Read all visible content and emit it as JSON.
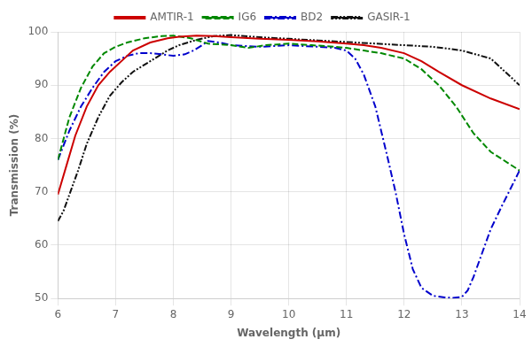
{
  "chart_data": {
    "type": "line",
    "xlabel": "Wavelength (μm)",
    "ylabel": "Transmission (%)",
    "xlim": [
      6,
      14
    ],
    "ylim": [
      50,
      100
    ],
    "xticks": [
      6,
      7,
      8,
      9,
      10,
      11,
      12,
      13,
      14
    ],
    "yticks": [
      50,
      60,
      70,
      80,
      90,
      100
    ],
    "grid": true,
    "legend": "top",
    "series": [
      {
        "name": "AMTIR-1",
        "color": "#cc0000",
        "line_style": "solid",
        "x": [
          6.0,
          6.15,
          6.3,
          6.5,
          6.7,
          6.9,
          7.1,
          7.3,
          7.6,
          7.9,
          8.1,
          8.4,
          8.7,
          9.0,
          9.5,
          10.0,
          10.5,
          11.0,
          11.3,
          11.6,
          12.0,
          12.3,
          12.6,
          13.0,
          13.5,
          14.0
        ],
        "values": [
          69.5,
          75.0,
          80.5,
          86.0,
          90.0,
          92.5,
          94.5,
          96.5,
          98.0,
          98.8,
          99.1,
          99.3,
          99.2,
          99.0,
          98.7,
          98.5,
          98.2,
          97.8,
          97.5,
          97.0,
          96.0,
          94.5,
          92.5,
          90.0,
          87.5,
          85.5
        ]
      },
      {
        "name": "IG6",
        "color": "#008800",
        "line_style": "dashed",
        "x": [
          6.0,
          6.2,
          6.4,
          6.6,
          6.8,
          7.0,
          7.2,
          7.5,
          7.8,
          8.0,
          8.3,
          8.6,
          9.0,
          9.3,
          9.6,
          10.0,
          10.4,
          10.8,
          11.0,
          11.3,
          11.6,
          12.0,
          12.3,
          12.6,
          12.9,
          13.2,
          13.5,
          14.0
        ],
        "values": [
          76.0,
          84.0,
          89.5,
          93.5,
          96.0,
          97.2,
          98.0,
          98.8,
          99.2,
          99.3,
          98.8,
          97.8,
          97.5,
          97.0,
          97.5,
          97.8,
          97.5,
          97.2,
          97.0,
          96.5,
          96.0,
          95.0,
          93.0,
          90.0,
          86.0,
          81.0,
          77.5,
          74.0
        ]
      },
      {
        "name": "BD2",
        "color": "#0000cc",
        "line_style": "dashdot",
        "x": [
          6.0,
          6.2,
          6.4,
          6.6,
          6.8,
          7.0,
          7.2,
          7.4,
          7.6,
          7.8,
          8.0,
          8.2,
          8.35,
          8.5,
          8.6,
          8.8,
          9.0,
          9.5,
          10.0,
          10.5,
          10.8,
          11.0,
          11.15,
          11.3,
          11.5,
          11.7,
          11.85,
          12.0,
          12.15,
          12.3,
          12.5,
          12.7,
          12.85,
          13.0,
          13.1,
          13.2,
          13.35,
          13.5,
          13.7,
          14.0
        ],
        "values": [
          76.0,
          81.5,
          86.0,
          89.5,
          92.5,
          94.5,
          95.5,
          96.0,
          96.0,
          95.8,
          95.5,
          95.8,
          96.5,
          97.5,
          98.3,
          98.0,
          97.5,
          97.2,
          97.5,
          97.2,
          97.0,
          96.5,
          95.0,
          92.0,
          86.0,
          77.0,
          70.0,
          62.0,
          55.5,
          52.0,
          50.5,
          50.2,
          50.1,
          50.3,
          51.5,
          54.0,
          58.5,
          63.0,
          67.5,
          74.0
        ]
      },
      {
        "name": "GASIR-1",
        "color": "#111111",
        "line_style": "dashdotdot",
        "x": [
          6.0,
          6.1,
          6.2,
          6.35,
          6.5,
          6.7,
          6.9,
          7.1,
          7.3,
          7.6,
          7.9,
          8.1,
          8.4,
          8.7,
          9.0,
          9.5,
          10.0,
          10.5,
          11.0,
          11.5,
          12.0,
          12.5,
          13.0,
          13.5,
          14.0
        ],
        "values": [
          64.5,
          66.5,
          69.5,
          74.0,
          79.0,
          84.0,
          88.0,
          90.5,
          92.5,
          94.5,
          96.5,
          97.5,
          98.5,
          99.2,
          99.4,
          99.0,
          98.7,
          98.4,
          98.1,
          97.8,
          97.5,
          97.2,
          96.5,
          95.0,
          90.0
        ]
      }
    ]
  }
}
